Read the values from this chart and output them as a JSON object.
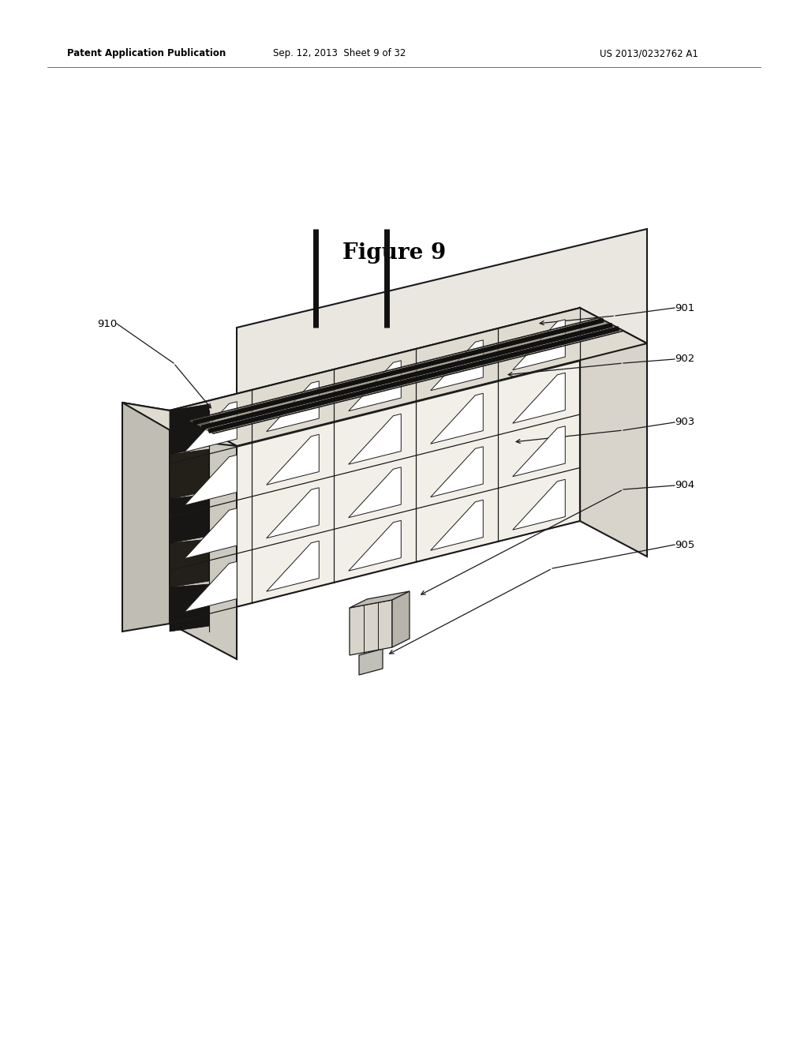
{
  "background_color": "#ffffff",
  "header_left": "Patent Application Publication",
  "header_mid": "Sep. 12, 2013  Sheet 9 of 32",
  "header_right": "US 2013/0232762 A1",
  "figure_title": "Figure 9",
  "line_color": "#1a1a1a",
  "text_color": "#000000",
  "face_front": "#f2efe8",
  "face_top": "#e0dbd0",
  "face_side": "#d8d4cc",
  "face_back": "#eae7e0",
  "face_left_panel": "#c0bdb5",
  "rail_color": "#111111",
  "bellow_color": "#1e1c18",
  "win_color": "#ffffff"
}
